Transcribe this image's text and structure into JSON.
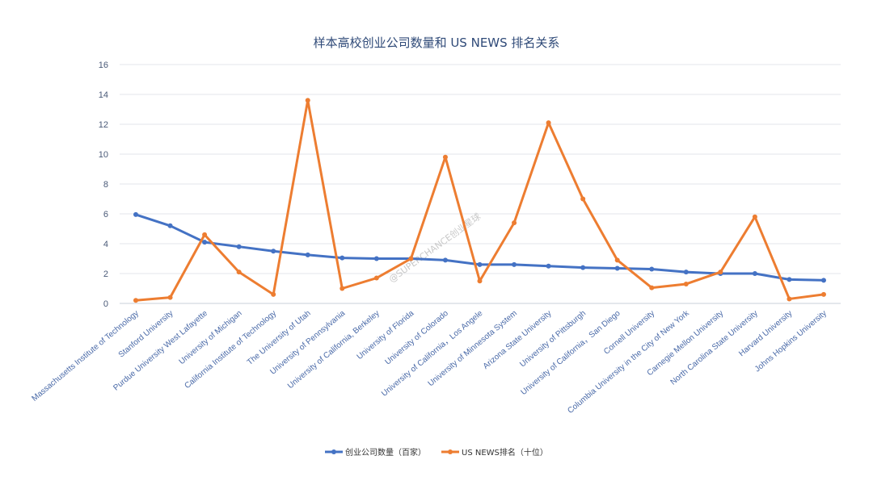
{
  "watermark": "@SUPERCHANCE创业星球",
  "chart_data": {
    "type": "line",
    "title": "样本高校创业公司数量和 US NEWS 排名关系",
    "ylim": [
      0,
      16
    ],
    "yticks": [
      "0",
      "2",
      "4",
      "6",
      "8",
      "10",
      "12",
      "14",
      "16"
    ],
    "grid": true,
    "legend_position": "bottom",
    "categories": [
      "Massachusetts Institute of Technology",
      "Stanford University",
      "Purdue University West Lafayette",
      "University of Michigan",
      "California Institute of Technology",
      "The University of Utah",
      "University of Pennsylvania",
      "University of California, Berkeley",
      "University of Florida",
      "University of Colorado",
      "University of California，Los Angele",
      "University of Minnesota System",
      "Arizona State University",
      "University of Pittsburgh",
      "University of California，San Diego",
      "Cornell University",
      "Columbia University in the City of New York",
      "Carnegie Mellon University",
      "North Carolina State University",
      "Harvard University",
      "Johns Hopkins University"
    ],
    "series": [
      {
        "name": "创业公司数量（百家）",
        "color": "#4472c4",
        "values": [
          5.95,
          5.2,
          4.1,
          3.8,
          3.5,
          3.25,
          3.05,
          3.0,
          3.0,
          2.9,
          2.6,
          2.6,
          2.5,
          2.4,
          2.35,
          2.3,
          2.1,
          2.0,
          2.0,
          1.6,
          1.55
        ]
      },
      {
        "name": "US NEWS排名（十位）",
        "color": "#ed7d31",
        "values": [
          0.2,
          0.4,
          4.6,
          2.1,
          0.6,
          13.6,
          1.0,
          1.7,
          3.0,
          9.8,
          1.5,
          5.4,
          12.1,
          7.0,
          2.9,
          1.05,
          1.3,
          2.1,
          5.8,
          0.3,
          0.6
        ]
      }
    ]
  }
}
